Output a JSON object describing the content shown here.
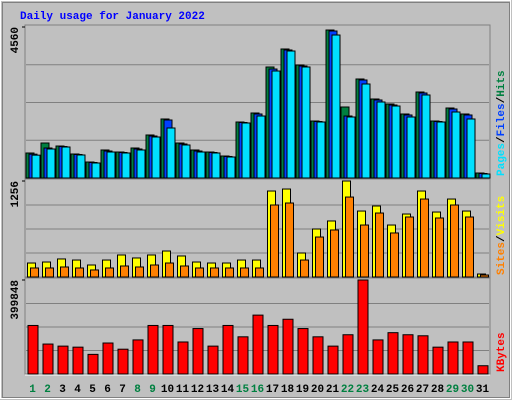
{
  "title": "Daily usage for January 2022",
  "title_color": "#0000ff",
  "chart_data": [
    {
      "type": "bar",
      "legend_separator": "/",
      "ylim": [
        0,
        4560
      ],
      "yticks": [
        4560
      ],
      "series": [
        {
          "name": "Pages",
          "color": "#00e0ff",
          "values": [
            690,
            876,
            936,
            695,
            453,
            785,
            755,
            846,
            1238,
            1510,
            997,
            785,
            755,
            634,
            1661,
            1872,
            3231,
            3835,
            3352,
            1691,
            4318,
            1842,
            2839,
            2295,
            2174,
            1842,
            2507,
            1691,
            1993,
            1782,
            121
          ]
        },
        {
          "name": "Files",
          "color": "#0040ff",
          "values": [
            720,
            906,
            950,
            710,
            468,
            815,
            770,
            876,
            1268,
            1752,
            1027,
            815,
            770,
            650,
            1676,
            1933,
            3291,
            3866,
            3382,
            1706,
            4439,
            1872,
            2960,
            2356,
            2204,
            1903,
            2567,
            1706,
            2084,
            1903,
            136
          ]
        },
        {
          "name": "Hits",
          "color": "#008040",
          "values": [
            755,
            1057,
            966,
            725,
            483,
            846,
            785,
            906,
            1299,
            1782,
            1057,
            846,
            785,
            664,
            1691,
            1963,
            3352,
            3896,
            3412,
            1721,
            4469,
            2144,
            2990,
            2386,
            2235,
            1933,
            2597,
            1721,
            2114,
            1933,
            151
          ]
        }
      ]
    },
    {
      "type": "bar",
      "legend_separator": "/",
      "ylim": [
        0,
        1256
      ],
      "yticks": [
        1256
      ],
      "series": [
        {
          "name": "Sites",
          "color": "#ff8000",
          "values": [
            118,
            118,
            131,
            118,
            92,
            118,
            144,
            131,
            157,
            183,
            144,
            118,
            118,
            118,
            118,
            118,
            942,
            968,
            222,
            523,
            615,
            1046,
            680,
            837,
            576,
            785,
            1020,
            772,
            942,
            785,
            26
          ]
        },
        {
          "name": "Visits",
          "color": "#ffff00",
          "values": [
            183,
            196,
            236,
            222,
            157,
            222,
            288,
            249,
            288,
            340,
            275,
            196,
            183,
            183,
            222,
            222,
            1125,
            1151,
            314,
            628,
            733,
            1256,
            863,
            929,
            680,
            824,
            1125,
            850,
            1020,
            863,
            39
          ]
        }
      ]
    },
    {
      "type": "bar",
      "ylim": [
        0,
        399848
      ],
      "yticks": [
        399848
      ],
      "categories": [
        "1",
        "2",
        "3",
        "4",
        "5",
        "6",
        "7",
        "8",
        "9",
        "10",
        "11",
        "12",
        "13",
        "14",
        "15",
        "16",
        "17",
        "18",
        "19",
        "20",
        "21",
        "22",
        "23",
        "24",
        "25",
        "26",
        "27",
        "28",
        "29",
        "30",
        "31"
      ],
      "category_colors": [
        "#008040",
        "#008040",
        "#000000",
        "#000000",
        "#000000",
        "#000000",
        "#000000",
        "#008040",
        "#008040",
        "#000000",
        "#000000",
        "#000000",
        "#000000",
        "#000000",
        "#008040",
        "#008040",
        "#000000",
        "#000000",
        "#000000",
        "#000000",
        "#000000",
        "#008040",
        "#008040",
        "#000000",
        "#000000",
        "#000000",
        "#000000",
        "#000000",
        "#008040",
        "#008040",
        "#000000"
      ],
      "series": [
        {
          "name": "KBytes",
          "color": "#ff0000",
          "values": [
            206500,
            127400,
            118600,
            114200,
            83500,
            131800,
            105500,
            145000,
            206500,
            206500,
            136200,
            193300,
            118600,
            206500,
            158200,
            250500,
            206500,
            232900,
            193300,
            158200,
            118600,
            167000,
            399848,
            145000,
            175800,
            167000,
            162600,
            114200,
            136200,
            136200,
            35200
          ]
        }
      ]
    }
  ]
}
